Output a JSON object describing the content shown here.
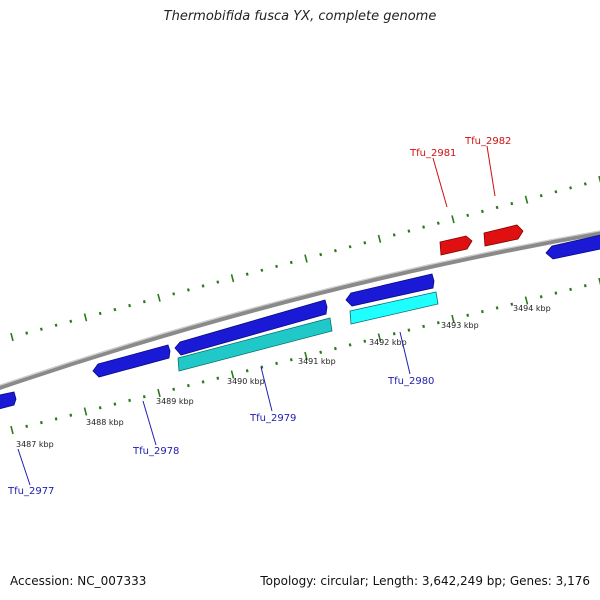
{
  "title": "Thermobifida fusca YX, complete genome",
  "footer": {
    "accession": "Accession: NC_007333",
    "summary": "Topology: circular; Length: 3,642,249 bp; Genes: 3,176"
  },
  "colors": {
    "backbone": "#8a8a8a",
    "ticks": "#2a7a1a",
    "gene_blue": "#1a1ad6",
    "gene_cyan": "#20c8c8",
    "gene_red": "#e01010",
    "label_blue": "#2020b0",
    "label_red": "#d01010"
  },
  "tick_labels": [
    "3487 kbp",
    "3488 kbp",
    "3489 kbp",
    "3490 kbp",
    "3491 kbp",
    "3492 kbp",
    "3493 kbp",
    "3494 kbp"
  ],
  "gene_labels": [
    "Tfu_2977",
    "Tfu_2978",
    "Tfu_2979",
    "Tfu_2980",
    "Tfu_2981",
    "Tfu_2982"
  ]
}
